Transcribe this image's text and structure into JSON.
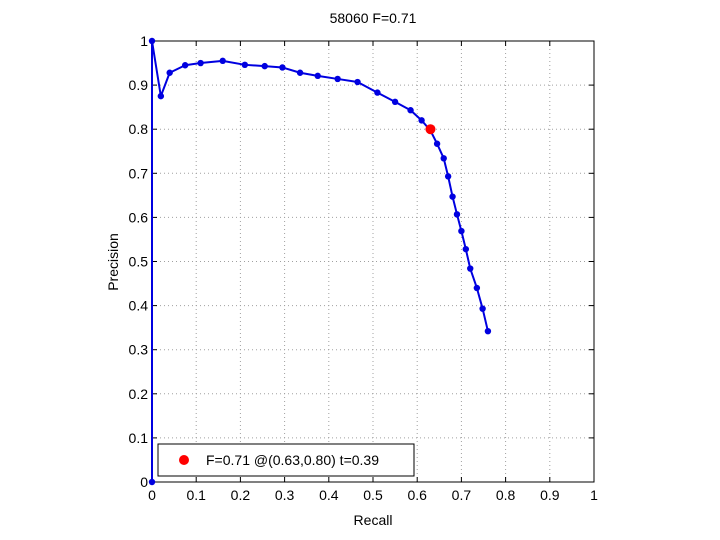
{
  "chart_data": {
    "type": "line",
    "title": "58060 F=0.71",
    "xlabel": "Recall",
    "ylabel": "Precision",
    "xlim": [
      0,
      1
    ],
    "ylim": [
      0,
      1
    ],
    "xticks": [
      "0",
      "0.1",
      "0.2",
      "0.3",
      "0.4",
      "0.5",
      "0.6",
      "0.7",
      "0.8",
      "0.9",
      "1"
    ],
    "yticks": [
      "0",
      "0.1",
      "0.2",
      "0.3",
      "0.4",
      "0.5",
      "0.6",
      "0.7",
      "0.8",
      "0.9",
      "1"
    ],
    "grid": true,
    "legend_position": "bottom-left",
    "series": [
      {
        "color": "#0000e0",
        "x": [
          0.0,
          0.0,
          0.02,
          0.04,
          0.075,
          0.11,
          0.16,
          0.21,
          0.255,
          0.295,
          0.335,
          0.375,
          0.42,
          0.465,
          0.51,
          0.55,
          0.585,
          0.61,
          0.63,
          0.645,
          0.66,
          0.67,
          0.68,
          0.69,
          0.7,
          0.71,
          0.72,
          0.735,
          0.748,
          0.76
        ],
        "y": [
          0.0,
          1.0,
          0.875,
          0.928,
          0.945,
          0.95,
          0.955,
          0.946,
          0.943,
          0.94,
          0.928,
          0.921,
          0.914,
          0.907,
          0.883,
          0.862,
          0.843,
          0.82,
          0.797,
          0.767,
          0.734,
          0.693,
          0.647,
          0.607,
          0.569,
          0.528,
          0.484,
          0.44,
          0.393,
          0.342
        ]
      }
    ],
    "highlight": {
      "x": 0.63,
      "y": 0.8,
      "color": "#ff0000",
      "label": "F=0.71 @(0.63,0.80) t=0.39"
    }
  }
}
